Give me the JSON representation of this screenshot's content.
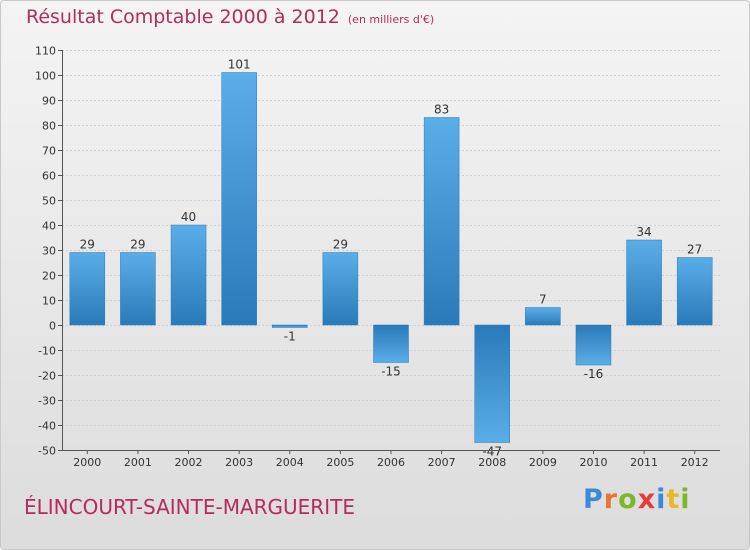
{
  "title": "Résultat Comptable 2000 à 2012",
  "subtitle": "(en milliers d'€)",
  "commune": "ÉLINCOURT-SAINTE-MARGUERITE",
  "logo_text": "Proxiti",
  "colors": {
    "title": "#b52a5f",
    "bar_top": "#5aaee8",
    "bar_bottom": "#2a7ab9",
    "logo": [
      "#3a8ad8",
      "#e8762a",
      "#7ab82a",
      "#e83a3a",
      "#3a8ad8",
      "#e8b82a",
      "#7ab82a"
    ]
  },
  "chart_data": {
    "type": "bar",
    "categories": [
      "2000",
      "2001",
      "2002",
      "2003",
      "2004",
      "2005",
      "2006",
      "2007",
      "2008",
      "2009",
      "2010",
      "2011",
      "2012"
    ],
    "values": [
      29,
      29,
      40,
      101,
      -1,
      29,
      -15,
      83,
      -47,
      7,
      -16,
      34,
      27
    ],
    "value_labels": [
      "29",
      "29",
      "40",
      "101",
      "-1",
      "29",
      "-15",
      "83",
      "-47",
      "7",
      "-16",
      "34",
      "27"
    ],
    "ylim": [
      -50,
      110
    ],
    "yticks": [
      -50,
      -40,
      -30,
      -20,
      -10,
      0,
      10,
      20,
      30,
      40,
      50,
      60,
      70,
      80,
      90,
      100,
      110
    ],
    "grid": true,
    "xlabel": "",
    "ylabel": ""
  }
}
